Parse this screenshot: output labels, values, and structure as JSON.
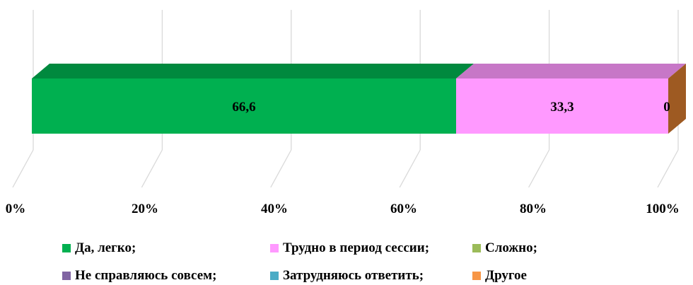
{
  "chart_data": {
    "type": "bar",
    "orientation": "horizontal",
    "stacked": "percent",
    "three_d": true,
    "categories": [
      ""
    ],
    "series": [
      {
        "name": "Да, легко;",
        "values": [
          66.6
        ],
        "color": "#00b050",
        "label": "66,6"
      },
      {
        "name": "Трудно в период сессии;",
        "values": [
          33.3
        ],
        "color": "#ff99ff",
        "label": "33,3"
      },
      {
        "name": "Сложно;",
        "values": [
          0
        ],
        "color": "#9bbb59",
        "label": ""
      },
      {
        "name": "Не справляюсь совсем;",
        "values": [
          0
        ],
        "color": "#8064a2",
        "label": ""
      },
      {
        "name": "Затрудняюсь ответить;",
        "values": [
          0
        ],
        "color": "#4bacc6",
        "label": ""
      },
      {
        "name": "Другое",
        "values": [
          0
        ],
        "color": "#f79646",
        "label": "0"
      }
    ],
    "x_ticks": [
      "0%",
      "20%",
      "40%",
      "60%",
      "80%",
      "100%"
    ],
    "xlim": [
      0,
      100
    ],
    "grid": true,
    "legend_position": "bottom"
  }
}
